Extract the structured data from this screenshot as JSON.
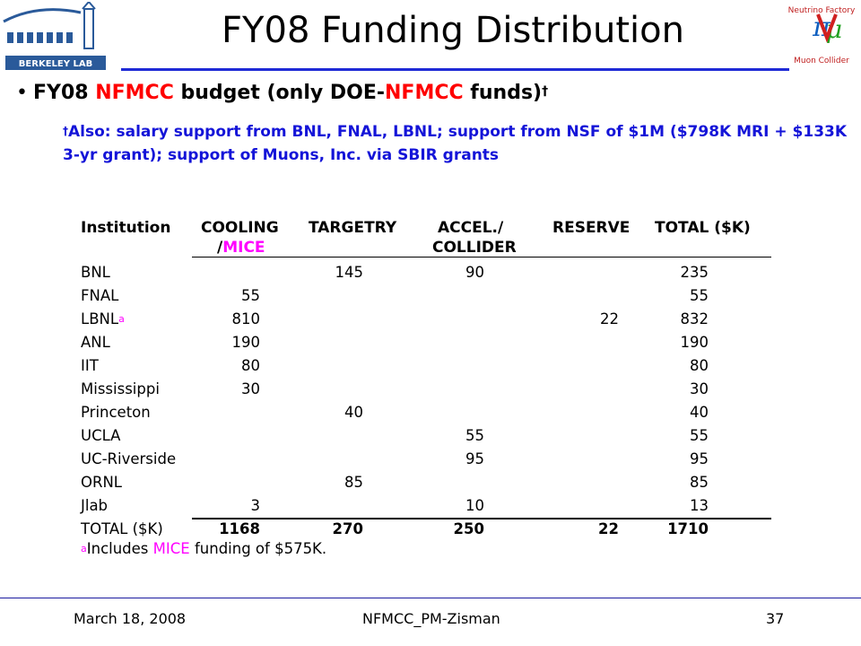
{
  "title": "FY08 Funding Distribution",
  "logos": {
    "left": "BERKELEY LAB",
    "right_lines": [
      "Neutrino Factory",
      "Muon Collider"
    ]
  },
  "bullet": {
    "part1": "FY08 ",
    "part2": "NFMCC",
    "part3": " budget (only DOE-",
    "part4": "NFMCC",
    "part5": " funds)",
    "dagger": "†"
  },
  "note": {
    "dagger": "†",
    "text": "Also: salary support from BNL, FNAL, LBNL; support from NSF of $1M ($798K MRI + $133K 3-yr grant); support of Muons, Inc. via SBIR grants"
  },
  "table": {
    "headers": {
      "institution": "Institution",
      "cooling_line1": "COOLING",
      "cooling_line2_prefix": "/",
      "cooling_line2_mice": "MICE",
      "targetry": "TARGETRY",
      "accel_line1": "ACCEL./",
      "accel_line2": "COLLIDER",
      "reserve": "RESERVE",
      "total": "TOTAL ($K)"
    },
    "rows": [
      {
        "inst": "BNL",
        "sup": "",
        "cooling": "",
        "targetry": "145",
        "accel": "90",
        "reserve": "",
        "total": "235"
      },
      {
        "inst": "FNAL",
        "sup": "",
        "cooling": "55",
        "targetry": "",
        "accel": "",
        "reserve": "",
        "total": "55"
      },
      {
        "inst": "LBNL",
        "sup": "a",
        "cooling": "810",
        "targetry": "",
        "accel": "",
        "reserve": "22",
        "total": "832"
      },
      {
        "inst": "ANL",
        "sup": "",
        "cooling": "190",
        "targetry": "",
        "accel": "",
        "reserve": "",
        "total": "190"
      },
      {
        "inst": "IIT",
        "sup": "",
        "cooling": "80",
        "targetry": "",
        "accel": "",
        "reserve": "",
        "total": "80"
      },
      {
        "inst": "Mississippi",
        "sup": "",
        "cooling": "30",
        "targetry": "",
        "accel": "",
        "reserve": "",
        "total": "30"
      },
      {
        "inst": "Princeton",
        "sup": "",
        "cooling": "",
        "targetry": "40",
        "accel": "",
        "reserve": "",
        "total": "40"
      },
      {
        "inst": "UCLA",
        "sup": "",
        "cooling": "",
        "targetry": "",
        "accel": "55",
        "reserve": "",
        "total": "55"
      },
      {
        "inst": "UC-Riverside",
        "sup": "",
        "cooling": "",
        "targetry": "",
        "accel": "95",
        "reserve": "",
        "total": "95"
      },
      {
        "inst": "ORNL",
        "sup": "",
        "cooling": "",
        "targetry": "85",
        "accel": "",
        "reserve": "",
        "total": "85"
      },
      {
        "inst": "Jlab",
        "sup": "",
        "cooling": "3",
        "targetry": "",
        "accel": "10",
        "reserve": "",
        "total": "13"
      }
    ],
    "totals": {
      "label": "TOTAL ($K)",
      "cooling": "1168",
      "targetry": "270",
      "accel": "250",
      "reserve": "22",
      "total": "1710"
    },
    "footnote": {
      "mark": "a",
      "prefix": "Includes ",
      "mice": "MICE",
      "suffix": " funding of $575K."
    }
  },
  "footer": {
    "date": "March 18, 2008",
    "center": "NFMCC_PM-Zisman",
    "page": "37"
  },
  "colors": {
    "title_rule": "#1f2bd6",
    "note_blue": "#1414d8",
    "highlight_red": "#ff0000",
    "mice_magenta": "#ff00ff"
  }
}
